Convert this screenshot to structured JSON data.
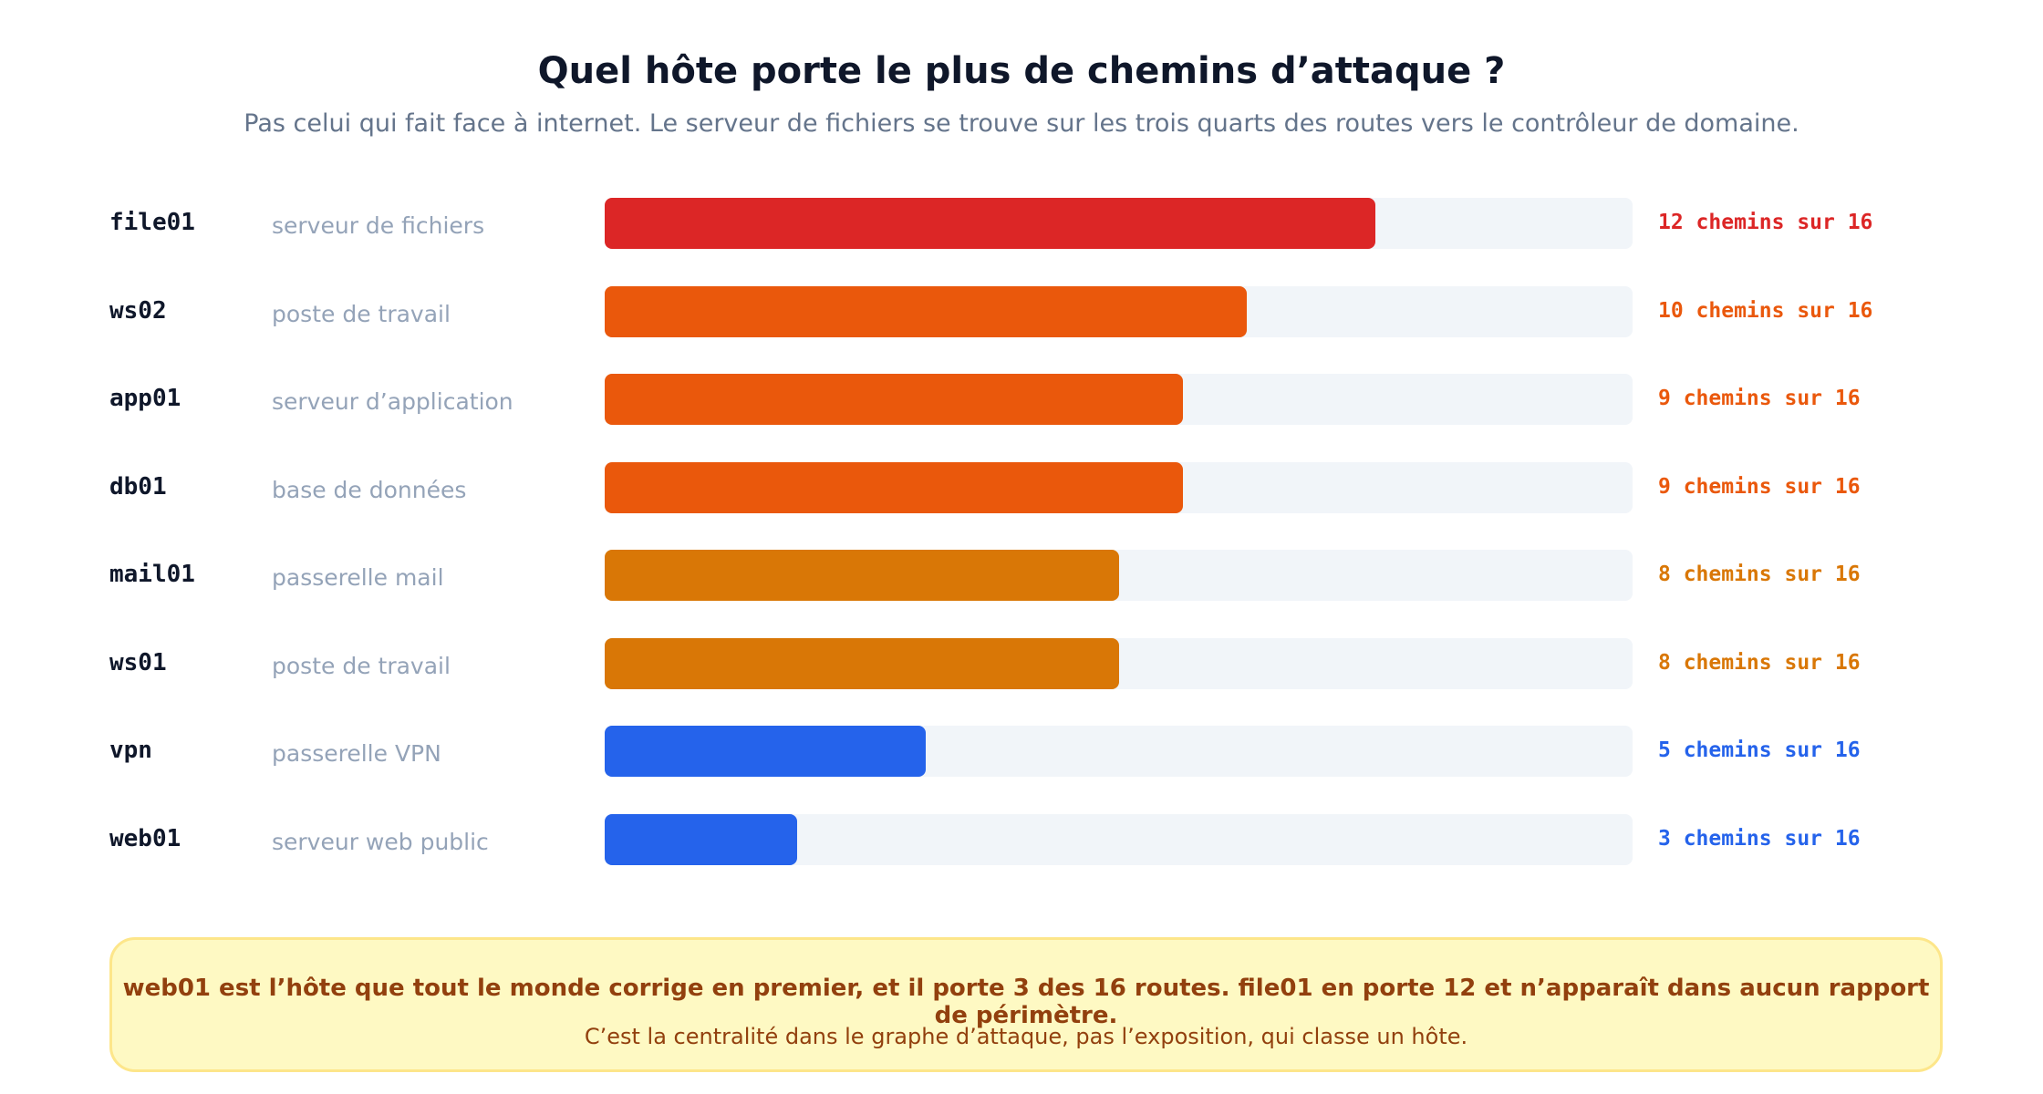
{
  "title": "Quel hôte porte le plus de chemins d’attaque ?",
  "subtitle": "Pas celui qui fait face à internet. Le serveur de fichiers se trouve sur les trois quarts des routes vers le contrôleur de domaine.",
  "chart_data": {
    "type": "bar",
    "orientation": "horizontal",
    "title": "Quel hôte porte le plus de chemins d’attaque ?",
    "subtitle": "Pas celui qui fait face à internet. Le serveur de fichiers se trouve sur les trois quarts des routes vers le contrôleur de domaine.",
    "categories": [
      "file01",
      "ws02",
      "app01",
      "db01",
      "mail01",
      "ws01",
      "vpn",
      "web01"
    ],
    "roles": [
      "serveur de fichiers",
      "poste de travail",
      "serveur d’application",
      "base de données",
      "passerelle mail",
      "poste de travail",
      "passerelle VPN",
      "serveur web public"
    ],
    "values": [
      12,
      10,
      9,
      9,
      8,
      8,
      5,
      3
    ],
    "labels": [
      "12 chemins sur 16",
      "10 chemins sur 16",
      "9 chemins sur 16",
      "9 chemins sur 16",
      "8 chemins sur 16",
      "8 chemins sur 16",
      "5 chemins sur 16",
      "3 chemins sur 16"
    ],
    "colors": [
      "#dc2626",
      "#ea580c",
      "#ea580c",
      "#ea580c",
      "#d97706",
      "#d97706",
      "#2563eb",
      "#2563eb"
    ],
    "total": 16,
    "xlim": [
      0,
      16
    ],
    "grid": false,
    "legend": "none"
  },
  "colors": {
    "track": "#f1f5f9",
    "host": "#0f172a",
    "role": "#94a3b8",
    "callout_bg": "#fef9c3",
    "callout_border": "#fde68a",
    "callout_text": "#92400e"
  },
  "callout": {
    "main": "web01 est l’hôte que tout le monde corrige en premier, et il porte 3 des 16 routes. file01 en porte 12 et n’apparaît dans aucun rapport de périmètre.",
    "sub": "C’est la centralité dans le graphe d’attaque, pas l’exposition, qui classe un hôte."
  }
}
